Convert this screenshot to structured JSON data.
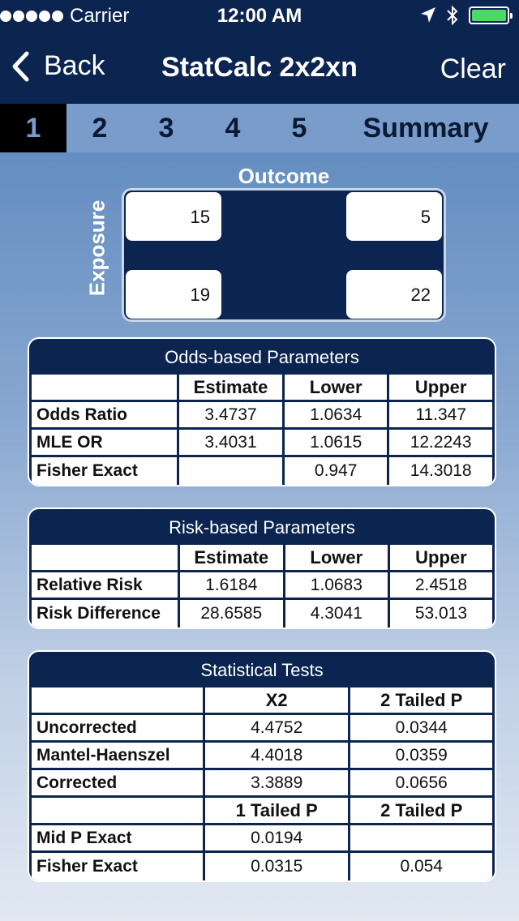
{
  "status_bar": {
    "carrier": "Carrier",
    "time": "12:00 AM"
  },
  "nav": {
    "back_label": "Back",
    "title": "StatCalc 2x2xn",
    "clear_label": "Clear"
  },
  "tabs": [
    {
      "label": "1",
      "active": true
    },
    {
      "label": "2"
    },
    {
      "label": "3"
    },
    {
      "label": "4"
    },
    {
      "label": "5"
    },
    {
      "label": "Summary"
    }
  ],
  "table_input": {
    "outcome_label": "Outcome",
    "exposure_label": "Exposure",
    "cells": [
      "15",
      "5",
      "19",
      "22"
    ]
  },
  "odds": {
    "title": "Odds-based Parameters",
    "headers": [
      "",
      "Estimate",
      "Lower",
      "Upper"
    ],
    "rows": [
      [
        "Odds Ratio",
        "3.4737",
        "1.0634",
        "11.347"
      ],
      [
        "MLE OR",
        "3.4031",
        "1.0615",
        "12.2243"
      ],
      [
        "Fisher Exact",
        "",
        "0.947",
        "14.3018"
      ]
    ]
  },
  "risk": {
    "title": "Risk-based Parameters",
    "headers": [
      "",
      "Estimate",
      "Lower",
      "Upper"
    ],
    "rows": [
      [
        "Relative Risk",
        "1.6184",
        "1.0683",
        "2.4518"
      ],
      [
        "Risk Difference",
        "28.6585",
        "4.3041",
        "53.013"
      ]
    ]
  },
  "tests": {
    "title": "Statistical Tests",
    "headers1": [
      "",
      "X2",
      "2 Tailed P"
    ],
    "rows1": [
      [
        "Uncorrected",
        "4.4752",
        "0.0344"
      ],
      [
        "Mantel-Haenszel",
        "4.4018",
        "0.0359"
      ],
      [
        "Corrected",
        "3.3889",
        "0.0656"
      ]
    ],
    "headers2": [
      "",
      "1 Tailed P",
      "2 Tailed P"
    ],
    "rows2": [
      [
        "Mid P Exact",
        "0.0194",
        ""
      ],
      [
        "Fisher Exact",
        "0.0315",
        "0.054"
      ]
    ]
  },
  "colors": {
    "navy": "#0b2450",
    "tab_bg": "#7a9ccb",
    "battery": "#4cd964"
  }
}
